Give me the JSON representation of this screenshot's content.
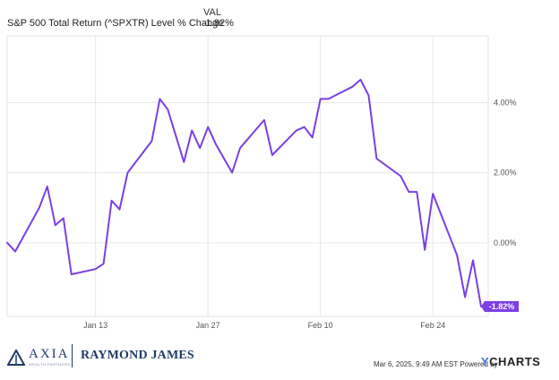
{
  "legend": {
    "column_header": "VAL",
    "series_label": "S&P 500 Total Return (^SPXTR) Level % Change",
    "series_value": "-1.82%"
  },
  "chart_data": {
    "type": "line",
    "series": [
      {
        "name": "S&P 500 Total Return (^SPXTR) Level % Change",
        "color": "#7b3fe4",
        "points": [
          [
            "2025-01-02",
            0.0
          ],
          [
            "2025-01-03",
            -0.25
          ],
          [
            "2025-01-06",
            1.0
          ],
          [
            "2025-01-07",
            1.6
          ],
          [
            "2025-01-08",
            0.5
          ],
          [
            "2025-01-09",
            0.7
          ],
          [
            "2025-01-10",
            -0.9
          ],
          [
            "2025-01-13",
            -0.75
          ],
          [
            "2025-01-14",
            -0.6
          ],
          [
            "2025-01-15",
            1.2
          ],
          [
            "2025-01-16",
            0.95
          ],
          [
            "2025-01-17",
            2.0
          ],
          [
            "2025-01-20",
            2.9
          ],
          [
            "2025-01-21",
            4.1
          ],
          [
            "2025-01-22",
            3.8
          ],
          [
            "2025-01-24",
            2.3
          ],
          [
            "2025-01-25",
            3.2
          ],
          [
            "2025-01-26",
            2.7
          ],
          [
            "2025-01-27",
            3.3
          ],
          [
            "2025-01-28",
            2.8
          ],
          [
            "2025-01-30",
            2.0
          ],
          [
            "2025-01-31",
            2.7
          ],
          [
            "2025-02-03",
            3.5
          ],
          [
            "2025-02-04",
            2.5
          ],
          [
            "2025-02-07",
            3.2
          ],
          [
            "2025-02-08",
            3.3
          ],
          [
            "2025-02-09",
            3.0
          ],
          [
            "2025-02-10",
            4.1
          ],
          [
            "2025-02-11",
            4.1
          ],
          [
            "2025-02-14",
            4.45
          ],
          [
            "2025-02-15",
            4.65
          ],
          [
            "2025-02-16",
            4.2
          ],
          [
            "2025-02-17",
            2.4
          ],
          [
            "2025-02-20",
            1.9
          ],
          [
            "2025-02-21",
            1.45
          ],
          [
            "2025-02-22",
            1.45
          ],
          [
            "2025-02-23",
            -0.2
          ],
          [
            "2025-02-24",
            1.4
          ],
          [
            "2025-02-27",
            -0.35
          ],
          [
            "2025-02-28",
            -1.55
          ],
          [
            "2025-03-01",
            -0.5
          ],
          [
            "2025-03-02",
            -1.82
          ]
        ]
      }
    ],
    "x_range": [
      "2025-01-02",
      "2025-03-02"
    ],
    "ylim": [
      -2.1,
      5.9
    ],
    "x_ticks": [
      {
        "date": "2025-01-13",
        "label": "Jan 13"
      },
      {
        "date": "2025-01-27",
        "label": "Jan 27"
      },
      {
        "date": "2025-02-10",
        "label": "Feb 10"
      },
      {
        "date": "2025-02-24",
        "label": "Feb 24"
      }
    ],
    "y_ticks": [
      {
        "value": 4,
        "label": "4.00%"
      },
      {
        "value": 2,
        "label": "2.00%"
      },
      {
        "value": 0,
        "label": "0.00%"
      }
    ],
    "end_label": "-1.82%",
    "grid": true,
    "colors": {
      "line": "#7b3fe4",
      "grid": "#e6e6e6",
      "end_label_bg": "#7b3fe4"
    }
  },
  "footer": {
    "axia_name": "AXIA",
    "axia_subtitle": "WEALTH PARTNERS",
    "raymond_james": "RAYMOND JAMES",
    "timestamp": "Mar 6, 2025, 9:49 AM EST Powered by",
    "ycharts_y": "Y",
    "ycharts_rest": "CHARTS"
  }
}
